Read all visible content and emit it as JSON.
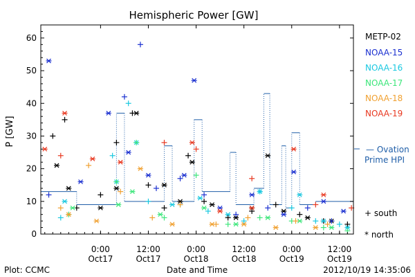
{
  "chart_data": {
    "type": "scatter",
    "title": "Hemispheric Power [GW]",
    "ylabel": "P [GW]",
    "xlabel": "Date and Time",
    "ylim": [
      0,
      64
    ],
    "yticks": [
      0,
      10,
      20,
      30,
      40,
      50,
      60
    ],
    "xticks": [
      {
        "time": "2012-10-17 00:00",
        "label1": "0:00",
        "label2": "Oct17"
      },
      {
        "time": "2012-10-17 12:00",
        "label1": "12:00",
        "label2": "Oct17"
      },
      {
        "time": "2012-10-18 00:00",
        "label1": "0:00",
        "label2": "Oct18"
      },
      {
        "time": "2012-10-18 12:00",
        "label1": "12:00",
        "label2": "Oct18"
      },
      {
        "time": "2012-10-19 00:00",
        "label1": "0:00",
        "label2": "Oct19"
      },
      {
        "time": "2012-10-19 12:00",
        "label1": "12:00",
        "label2": "Oct19"
      }
    ],
    "xlim": [
      "2012-10-16 09:00",
      "2012-10-19 15:30"
    ],
    "legend": {
      "placement": "right",
      "satellites": [
        {
          "name": "METP-02",
          "color": "#000000"
        },
        {
          "name": "NOAA-15",
          "color": "#1a2fd0"
        },
        {
          "name": "NOAA-16",
          "color": "#19c8e0"
        },
        {
          "name": "NOAA-17",
          "color": "#3ce67a"
        },
        {
          "name": "NOAA-18",
          "color": "#f0a030"
        },
        {
          "name": "NOAA-19",
          "color": "#e83820"
        }
      ],
      "ovation_line1": "— Ovation",
      "ovation_line2": "Prime HPI",
      "ovation_color": "#1f5ea8",
      "south_label": "+ south",
      "north_label": "* north"
    },
    "ovation_steps": [
      {
        "t": "2012-10-16 09:00",
        "y": 13
      },
      {
        "t": "2012-10-16 18:00",
        "y": 9
      },
      {
        "t": "2012-10-17 04:00",
        "y": 37
      },
      {
        "t": "2012-10-17 06:00",
        "y": 10
      },
      {
        "t": "2012-10-17 16:00",
        "y": 27
      },
      {
        "t": "2012-10-17 18:00",
        "y": 10
      },
      {
        "t": "2012-10-17 23:30",
        "y": 35
      },
      {
        "t": "2012-10-18 01:30",
        "y": 13
      },
      {
        "t": "2012-10-18 08:30",
        "y": 25
      },
      {
        "t": "2012-10-18 10:00",
        "y": 9
      },
      {
        "t": "2012-10-18 14:30",
        "y": 14
      },
      {
        "t": "2012-10-18 17:00",
        "y": 43
      },
      {
        "t": "2012-10-18 18:30",
        "y": 9
      },
      {
        "t": "2012-10-18 21:30",
        "y": 27
      },
      {
        "t": "2012-10-18 22:30",
        "y": 8
      },
      {
        "t": "2012-10-19 00:00",
        "y": 31
      },
      {
        "t": "2012-10-19 02:00",
        "y": 9
      },
      {
        "t": "2012-10-19 06:00",
        "y": 10
      },
      {
        "t": "2012-10-19 15:30",
        "y": 9
      }
    ],
    "series": [
      {
        "name": "METP-02",
        "color": "#000000",
        "south": [
          [
            "2012-10-16 12:00",
            30
          ],
          [
            "2012-10-16 15:00",
            35
          ],
          [
            "2012-10-16 18:00",
            8
          ],
          [
            "2012-10-17 00:00",
            12
          ],
          [
            "2012-10-17 04:00",
            28
          ],
          [
            "2012-10-17 08:00",
            37
          ],
          [
            "2012-10-17 12:00",
            15
          ],
          [
            "2012-10-17 16:00",
            8
          ],
          [
            "2012-10-17 22:00",
            24
          ],
          [
            "2012-10-18 02:00",
            10
          ],
          [
            "2012-10-18 08:00",
            5
          ],
          [
            "2012-10-18 14:00",
            7
          ],
          [
            "2012-10-18 20:00",
            9
          ],
          [
            "2012-10-19 02:00",
            6
          ],
          [
            "2012-10-19 08:00",
            4
          ],
          [
            "2012-10-19 14:00",
            3
          ]
        ],
        "north": [
          [
            "2012-10-16 13:00",
            21
          ],
          [
            "2012-10-16 16:00",
            14
          ],
          [
            "2012-10-17 00:00",
            8
          ],
          [
            "2012-10-17 04:00",
            14
          ],
          [
            "2012-10-17 09:00",
            37
          ],
          [
            "2012-10-17 16:00",
            15
          ],
          [
            "2012-10-17 20:00",
            10
          ],
          [
            "2012-10-17 23:00",
            22
          ],
          [
            "2012-10-18 04:00",
            9
          ],
          [
            "2012-10-18 10:00",
            5
          ],
          [
            "2012-10-18 14:00",
            8
          ],
          [
            "2012-10-18 18:00",
            24
          ],
          [
            "2012-10-18 22:00",
            7
          ],
          [
            "2012-10-19 04:00",
            5
          ],
          [
            "2012-10-19 10:00",
            4
          ]
        ]
      },
      {
        "name": "NOAA-15",
        "color": "#1a2fd0",
        "south": [
          [
            "2012-10-16 11:00",
            12
          ],
          [
            "2012-10-17 06:00",
            42
          ],
          [
            "2012-10-17 10:00",
            58
          ],
          [
            "2012-10-17 14:00",
            14
          ],
          [
            "2012-10-17 20:00",
            17
          ],
          [
            "2012-10-18 02:00",
            12
          ],
          [
            "2012-10-18 10:00",
            6
          ],
          [
            "2012-10-18 18:00",
            8
          ],
          [
            "2012-10-19 04:00",
            8
          ],
          [
            "2012-10-19 10:00",
            4
          ]
        ],
        "north": [
          [
            "2012-10-16 11:00",
            53
          ],
          [
            "2012-10-16 19:00",
            16
          ],
          [
            "2012-10-17 02:00",
            37
          ],
          [
            "2012-10-17 07:00",
            25
          ],
          [
            "2012-10-17 12:00",
            18
          ],
          [
            "2012-10-17 21:00",
            18
          ],
          [
            "2012-10-17 23:30",
            47
          ],
          [
            "2012-10-18 06:00",
            8
          ],
          [
            "2012-10-18 14:00",
            12
          ],
          [
            "2012-10-18 22:00",
            6
          ],
          [
            "2012-10-19 00:30",
            19
          ],
          [
            "2012-10-19 08:00",
            10
          ],
          [
            "2012-10-19 13:00",
            7
          ]
        ]
      },
      {
        "name": "NOAA-16",
        "color": "#19c8e0",
        "south": [
          [
            "2012-10-16 14:00",
            5
          ],
          [
            "2012-10-17 03:00",
            24
          ],
          [
            "2012-10-17 07:00",
            40
          ],
          [
            "2012-10-17 12:00",
            10
          ],
          [
            "2012-10-17 20:00",
            9
          ],
          [
            "2012-10-18 03:00",
            7
          ],
          [
            "2012-10-18 12:00",
            4
          ],
          [
            "2012-10-18 16:00",
            13
          ],
          [
            "2012-10-19 00:00",
            8
          ],
          [
            "2012-10-19 06:00",
            4
          ],
          [
            "2012-10-19 12:00",
            3
          ]
        ],
        "north": [
          [
            "2012-10-16 15:00",
            10
          ],
          [
            "2012-10-17 04:00",
            16
          ],
          [
            "2012-10-17 09:00",
            28
          ],
          [
            "2012-10-17 18:00",
            9
          ],
          [
            "2012-10-18 01:00",
            11
          ],
          [
            "2012-10-18 08:00",
            6
          ],
          [
            "2012-10-18 16:00",
            13
          ],
          [
            "2012-10-19 02:00",
            12
          ],
          [
            "2012-10-19 08:00",
            4
          ],
          [
            "2012-10-19 14:00",
            2
          ]
        ]
      },
      {
        "name": "NOAA-17",
        "color": "#3ce67a",
        "south": [
          [
            "2012-10-16 16:00",
            6
          ],
          [
            "2012-10-17 04:00",
            16
          ],
          [
            "2012-10-17 09:00",
            28
          ],
          [
            "2012-10-17 16:00",
            5
          ],
          [
            "2012-10-18 00:00",
            18
          ],
          [
            "2012-10-18 08:00",
            3
          ],
          [
            "2012-10-18 16:00",
            5
          ],
          [
            "2012-10-19 00:00",
            4
          ],
          [
            "2012-10-19 08:00",
            2
          ],
          [
            "2012-10-19 14:00",
            1
          ]
        ],
        "north": [
          [
            "2012-10-16 17:00",
            8
          ],
          [
            "2012-10-17 04:30",
            9
          ],
          [
            "2012-10-17 08:00",
            13
          ],
          [
            "2012-10-17 15:00",
            6
          ],
          [
            "2012-10-18 02:00",
            8
          ],
          [
            "2012-10-18 10:00",
            3
          ],
          [
            "2012-10-18 18:00",
            5
          ],
          [
            "2012-10-19 02:00",
            4
          ],
          [
            "2012-10-19 10:00",
            2
          ]
        ]
      },
      {
        "name": "NOAA-18",
        "color": "#f0a030",
        "south": [
          [
            "2012-10-16 14:00",
            8
          ],
          [
            "2012-10-16 21:00",
            21
          ],
          [
            "2012-10-17 05:00",
            13
          ],
          [
            "2012-10-17 13:00",
            5
          ],
          [
            "2012-10-17 20:00",
            9
          ],
          [
            "2012-10-18 05:00",
            3
          ],
          [
            "2012-10-18 13:00",
            5
          ],
          [
            "2012-10-19 01:00",
            4
          ],
          [
            "2012-10-19 09:00",
            3
          ]
        ],
        "north": [
          [
            "2012-10-16 16:00",
            6
          ],
          [
            "2012-10-16 23:00",
            4
          ],
          [
            "2012-10-17 10:00",
            20
          ],
          [
            "2012-10-17 18:00",
            3
          ],
          [
            "2012-10-18 04:00",
            3
          ],
          [
            "2012-10-18 12:00",
            3
          ],
          [
            "2012-10-18 20:00",
            2
          ],
          [
            "2012-10-19 06:00",
            2
          ]
        ]
      },
      {
        "name": "NOAA-19",
        "color": "#e83820",
        "south": [
          [
            "2012-10-16 14:00",
            24
          ],
          [
            "2012-10-17 16:00",
            28
          ],
          [
            "2012-10-18 00:00",
            26
          ],
          [
            "2012-10-18 14:00",
            17
          ],
          [
            "2012-10-19 06:00",
            9
          ],
          [
            "2012-10-19 15:00",
            8
          ]
        ],
        "north": [
          [
            "2012-10-16 10:00",
            26
          ],
          [
            "2012-10-16 15:00",
            37
          ],
          [
            "2012-10-16 22:00",
            23
          ],
          [
            "2012-10-17 05:00",
            22
          ],
          [
            "2012-10-17 23:00",
            28
          ],
          [
            "2012-10-18 06:00",
            7
          ],
          [
            "2012-10-18 14:00",
            8
          ],
          [
            "2012-10-19 00:30",
            26
          ],
          [
            "2012-10-19 08:00",
            12
          ]
        ]
      }
    ]
  },
  "footer": {
    "plot_label": "Plot: CCMC",
    "date_label": "Date and Time",
    "timestamp": "2012/10/19 14:35:06"
  }
}
